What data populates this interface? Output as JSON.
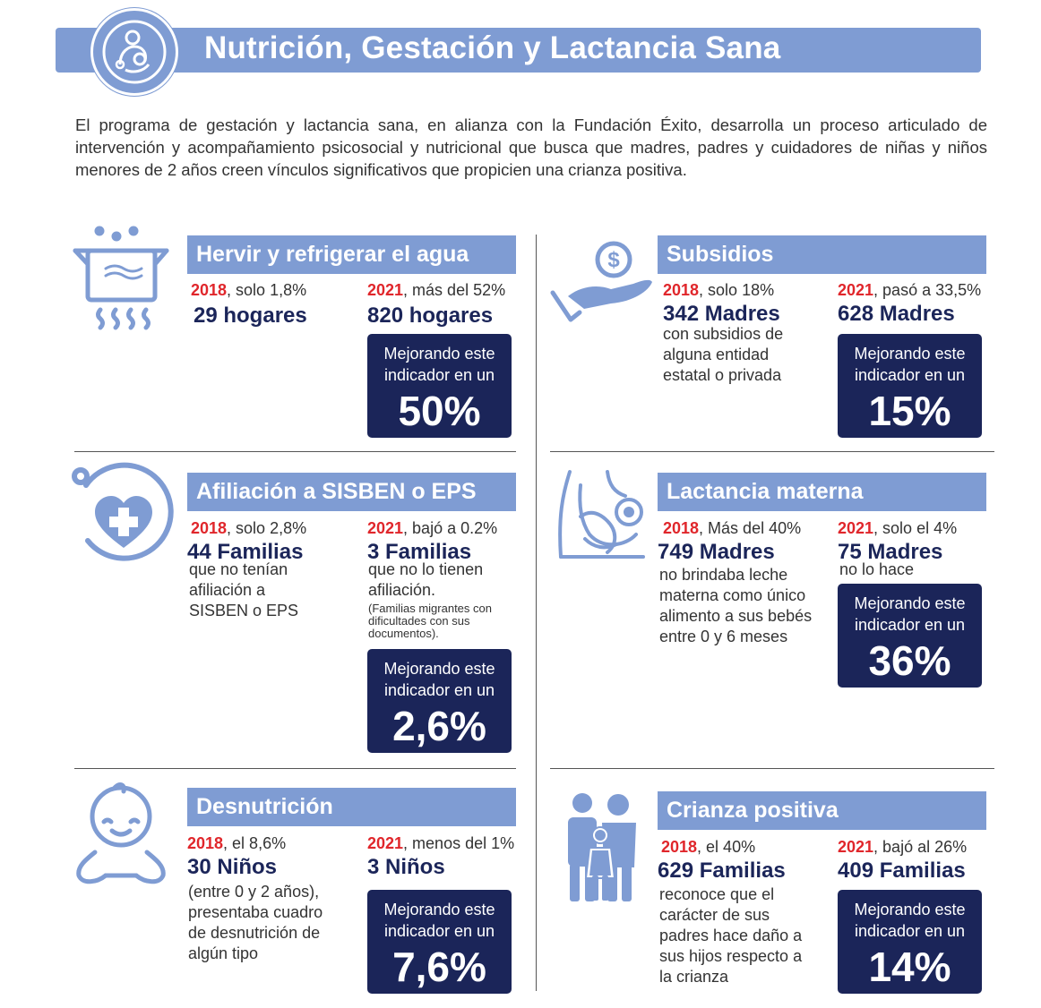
{
  "header": {
    "title": "Nutrición, Gestación y Lactancia Sana",
    "icon": "mother-baby-icon"
  },
  "intro": "El programa de gestación y lactancia sana, en alianza con la Fundación Éxito, desarrolla un proceso articulado de intervención y acompañamiento psicosocial y nutricional que busca que madres, padres y cuidadores de niñas y niños menores de 2 años creen vínculos significativos que propicien una crianza positiva.",
  "colors": {
    "accent": "#7f9cd3",
    "dark": "#1b2559",
    "year": "#e0262b"
  },
  "indicator_label_1": "Mejorando este",
  "indicator_label_2": "indicador en un",
  "sections": [
    {
      "title": "Hervir y refrigerar el agua",
      "icon": "boiling-pot-icon",
      "y2018": "2018",
      "t2018": ", solo 1,8%",
      "v2018": "29 hogares",
      "d2018": "",
      "y2021": "2021",
      "t2021": ", más del 52%",
      "v2021": "820 hogares",
      "d2021": "",
      "indicator": "50%"
    },
    {
      "title": "Subsidios",
      "icon": "hand-coin-icon",
      "y2018": "2018",
      "t2018": ", solo 18%",
      "v2018": "342 Madres",
      "d2018": "con subsidios de alguna entidad estatal o privada",
      "y2021": "2021",
      "t2021": ", pasó a 33,5%",
      "v2021": "628 Madres",
      "d2021": "",
      "indicator": "15%"
    },
    {
      "title": "Afiliación a SISBEN o EPS",
      "icon": "health-heart-icon",
      "y2018": "2018",
      "t2018": ", solo 2,8%",
      "v2018": "44 Familias",
      "d2018": "que no tenían afiliación a SISBEN o EPS",
      "y2021": "2021",
      "t2021": ", bajó a 0.2%",
      "v2021": "3 Familias",
      "d2021": "que no lo tienen afiliación.",
      "note": "(Familias migrantes con dificultades con sus documentos).",
      "indicator": "2,6%"
    },
    {
      "title": "Lactancia materna",
      "icon": "breastfeeding-icon",
      "y2018": "2018",
      "t2018": ", Más del 40%",
      "v2018": "749 Madres",
      "d2018": "no brindaba leche materna como único alimento a sus bebés entre 0 y 6 meses",
      "y2021": "2021",
      "t2021": ", solo el 4%",
      "v2021": "75 Madres",
      "d2021": "no lo hace",
      "indicator": "36%"
    },
    {
      "title": "Desnutrición",
      "icon": "baby-icon",
      "y2018": "2018",
      "t2018": ", el 8,6%",
      "v2018": "30 Niños",
      "d2018": "(entre 0 y 2 años), presentaba cuadro de desnutrición de algún tipo",
      "y2021": "2021",
      "t2021": ", menos del 1%",
      "v2021": "3 Niños",
      "d2021": "",
      "indicator": "7,6%"
    },
    {
      "title": "Crianza positiva",
      "icon": "family-icon",
      "y2018": "2018",
      "t2018": ", el 40%",
      "v2018": "629 Familias",
      "d2018": "reconoce que el carácter de sus padres hace daño a sus hijos respecto a la crianza",
      "y2021": "2021",
      "t2021": ", bajó al 26%",
      "v2021": "409 Familias",
      "d2021": "",
      "indicator": "14%"
    }
  ]
}
